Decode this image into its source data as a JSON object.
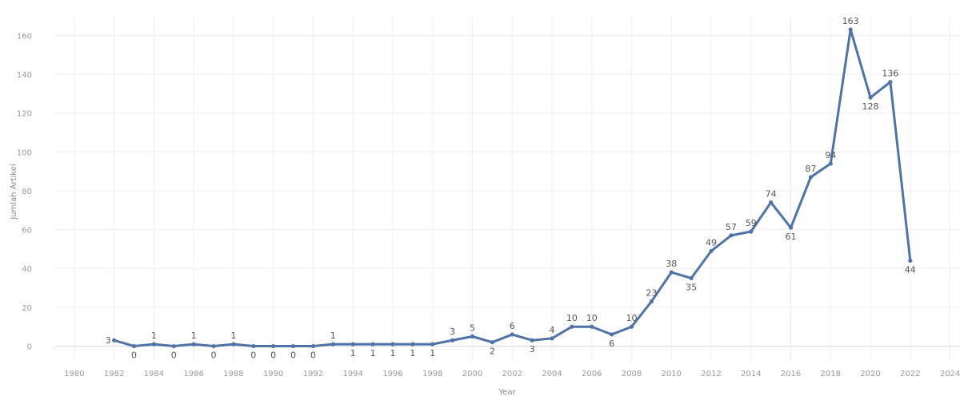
{
  "chart_data": {
    "type": "line",
    "xlabel": "Year",
    "ylabel": "Jumlah Artikel",
    "xlim": [
      1979,
      2024.5
    ],
    "ylim": [
      -8,
      170
    ],
    "x_ticks": [
      1980,
      1982,
      1984,
      1986,
      1988,
      1990,
      1992,
      1994,
      1996,
      1998,
      2000,
      2002,
      2004,
      2006,
      2008,
      2010,
      2012,
      2014,
      2016,
      2018,
      2020,
      2022,
      2024
    ],
    "y_ticks": [
      0,
      20,
      40,
      60,
      80,
      100,
      120,
      140,
      160
    ],
    "grid": true,
    "line_color": "#4f73a6",
    "series": [
      {
        "x": [
          1982,
          1983,
          1984,
          1985,
          1986,
          1987,
          1988,
          1989,
          1990,
          1991,
          1992,
          1993,
          1994,
          1995,
          1996,
          1997,
          1998,
          1999,
          2000,
          2001,
          2002,
          2003,
          2004,
          2005,
          2006,
          2007,
          2008,
          2009,
          2010,
          2011,
          2012,
          2013,
          2014,
          2015,
          2016,
          2017,
          2018,
          2019,
          2020,
          2021,
          2022
        ],
        "values": [
          3,
          0,
          1,
          0,
          1,
          0,
          1,
          0,
          0,
          0,
          0,
          1,
          1,
          1,
          1,
          1,
          1,
          3,
          5,
          2,
          6,
          3,
          4,
          10,
          10,
          6,
          10,
          23,
          38,
          35,
          49,
          57,
          59,
          74,
          61,
          87,
          94,
          163,
          128,
          136,
          44
        ]
      }
    ]
  }
}
